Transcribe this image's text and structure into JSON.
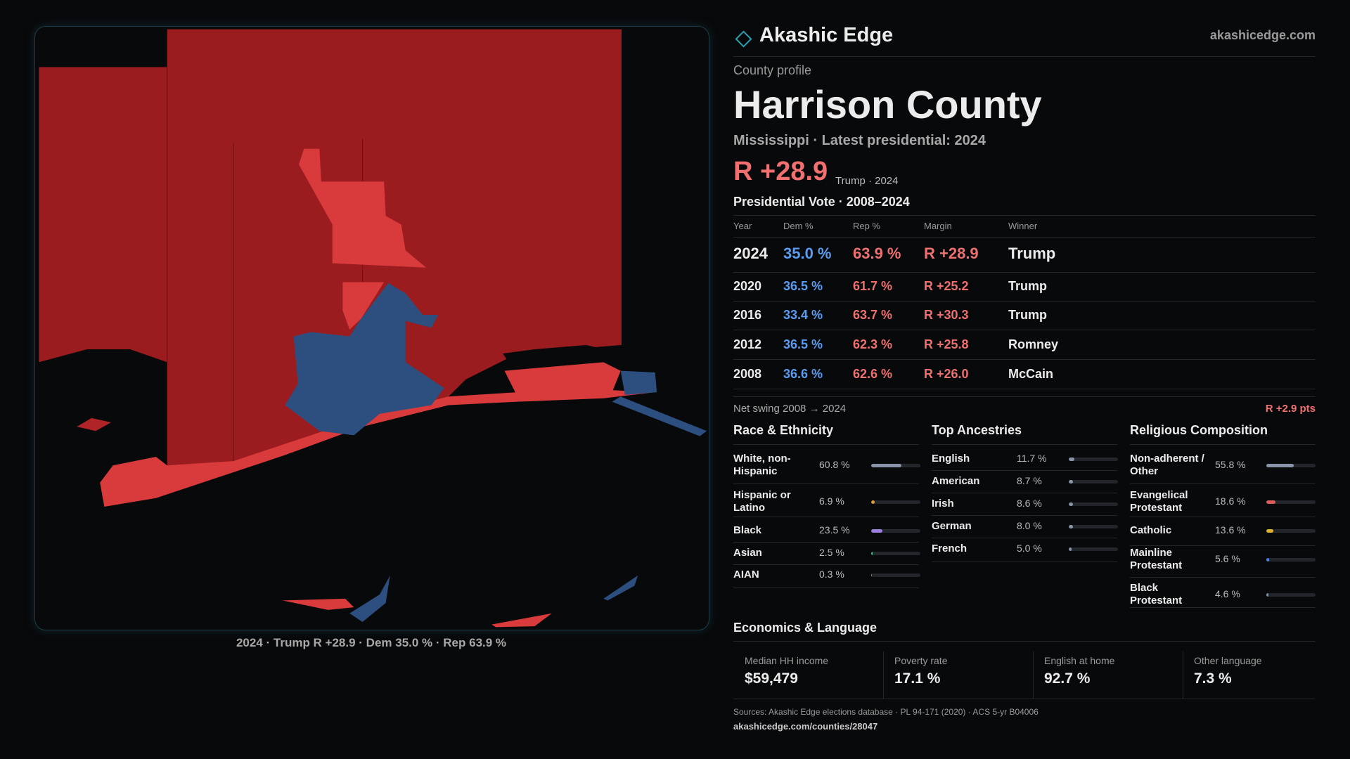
{
  "header": {
    "brand": "Akashic Edge",
    "site": "akashicedge.com"
  },
  "map": {
    "caption": "2024 · Trump R +28.9 · Dem 35.0 % · Rep 63.9 %"
  },
  "profile": {
    "kicker": "County profile",
    "title": "Harrison County",
    "subtitle": "Mississippi · Latest presidential: 2024",
    "margin": "R +28.9",
    "margin_note": "Trump · 2024"
  },
  "votes": {
    "title": "Presidential Vote · 2008–2024",
    "columns": [
      "Year",
      "Dem %",
      "Rep %",
      "Margin",
      "Winner"
    ],
    "rows": [
      [
        "2024",
        "35.0 %",
        "63.9 %",
        "R +28.9",
        "Trump"
      ],
      [
        "2020",
        "36.5 %",
        "61.7 %",
        "R +25.2",
        "Trump"
      ],
      [
        "2016",
        "33.4 %",
        "63.7 %",
        "R +30.3",
        "Trump"
      ],
      [
        "2012",
        "36.5 %",
        "62.3 %",
        "R +25.8",
        "Romney"
      ],
      [
        "2008",
        "36.6 %",
        "62.6 %",
        "R +26.0",
        "McCain"
      ]
    ],
    "swing_label": "Net swing 2008 → 2024",
    "swing": "R +2.9 pts"
  },
  "race": {
    "title": "Race & Ethnicity",
    "rows": [
      {
        "name": "White, non-Hispanic",
        "label": "60.8 %",
        "value": 60.8,
        "color": "#8a93a8"
      },
      {
        "name": "Hispanic or Latino",
        "label": "6.9 %",
        "value": 6.9,
        "color": "#e0a030"
      },
      {
        "name": "Black",
        "label": "23.5 %",
        "value": 23.5,
        "color": "#9b7fe0"
      },
      {
        "name": "Asian",
        "label": "2.5 %",
        "value": 2.5,
        "color": "#40c0a0"
      },
      {
        "name": "AIAN",
        "label": "0.3 %",
        "value": 0.3,
        "color": "#e07040"
      }
    ]
  },
  "ancestry": {
    "title": "Top Ancestries",
    "rows": [
      {
        "name": "English",
        "label": "11.7 %",
        "value": 11.7,
        "color": "#8a93a8"
      },
      {
        "name": "American",
        "label": "8.7 %",
        "value": 8.7,
        "color": "#8a93a8"
      },
      {
        "name": "Irish",
        "label": "8.6 %",
        "value": 8.6,
        "color": "#8a93a8"
      },
      {
        "name": "German",
        "label": "8.0 %",
        "value": 8.0,
        "color": "#8a93a8"
      },
      {
        "name": "French",
        "label": "5.0 %",
        "value": 5.0,
        "color": "#8a93a8"
      }
    ]
  },
  "religion": {
    "title": "Religious Composition",
    "rows": [
      {
        "name": "Non-adherent / Other",
        "label": "55.8 %",
        "value": 55.8,
        "color": "#8a93a8"
      },
      {
        "name": "Evangelical Protestant",
        "label": "18.6 %",
        "value": 18.6,
        "color": "#e05a5a"
      },
      {
        "name": "Catholic",
        "label": "13.6 %",
        "value": 13.6,
        "color": "#e0b030"
      },
      {
        "name": "Mainline Protestant",
        "label": "5.6 %",
        "value": 5.6,
        "color": "#4a80e0"
      },
      {
        "name": "Black Protestant",
        "label": "4.6 %",
        "value": 4.6,
        "color": "#8090c0"
      }
    ]
  },
  "economics": {
    "title": "Economics & Language",
    "cells": [
      {
        "label": "Median HH income",
        "value": "$59,479"
      },
      {
        "label": "Poverty rate",
        "value": "17.1 %"
      },
      {
        "label": "English at home",
        "value": "92.7 %"
      },
      {
        "label": "Other language",
        "value": "7.3 %"
      }
    ]
  },
  "footer": {
    "sources": "Sources: Akashic Edge elections database · PL 94-171 (2020) · ACS 5-yr B04006",
    "url": "akashicedge.com/counties/28047"
  }
}
